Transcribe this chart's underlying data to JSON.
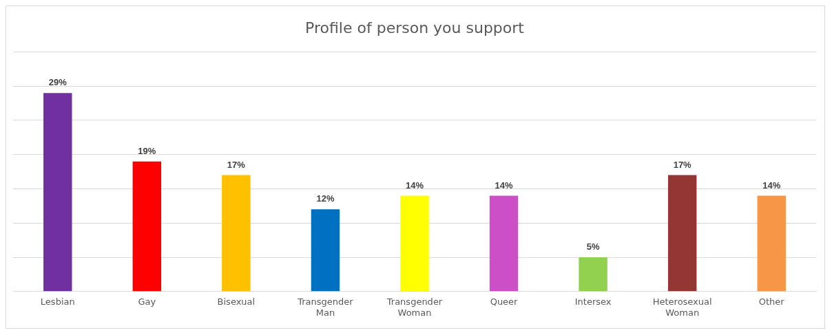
{
  "chart_data": {
    "type": "bar",
    "title": "Profile of person you support",
    "categories": [
      "Lesbian",
      "Gay",
      "Bisexual",
      "Transgender Man",
      "Transgender Woman",
      "Queer",
      "Intersex",
      "Heterosexual Woman",
      "Other"
    ],
    "values": [
      29,
      19,
      17,
      12,
      14,
      14,
      5,
      17,
      14
    ],
    "colors": [
      "#7030a0",
      "#ff0000",
      "#ffc000",
      "#0070c0",
      "#ffff00",
      "#cc4fc8",
      "#92d050",
      "#943634",
      "#f79646"
    ],
    "value_labels": [
      "29%",
      "19%",
      "17%",
      "12%",
      "14%",
      "14%",
      "5%",
      "17%",
      "14%"
    ],
    "ylim": [
      0,
      35
    ],
    "yticks": [
      {
        "value": 0,
        "label": null
      },
      {
        "value": 5,
        "label": null
      },
      {
        "value": 10,
        "label": null
      },
      {
        "value": 15,
        "label": null
      },
      {
        "value": 20,
        "label": null
      },
      {
        "value": 25,
        "label": null
      },
      {
        "value": 30,
        "label": null
      },
      {
        "value": 35,
        "label": null
      }
    ],
    "grid": "y",
    "tick_labels": "x"
  }
}
